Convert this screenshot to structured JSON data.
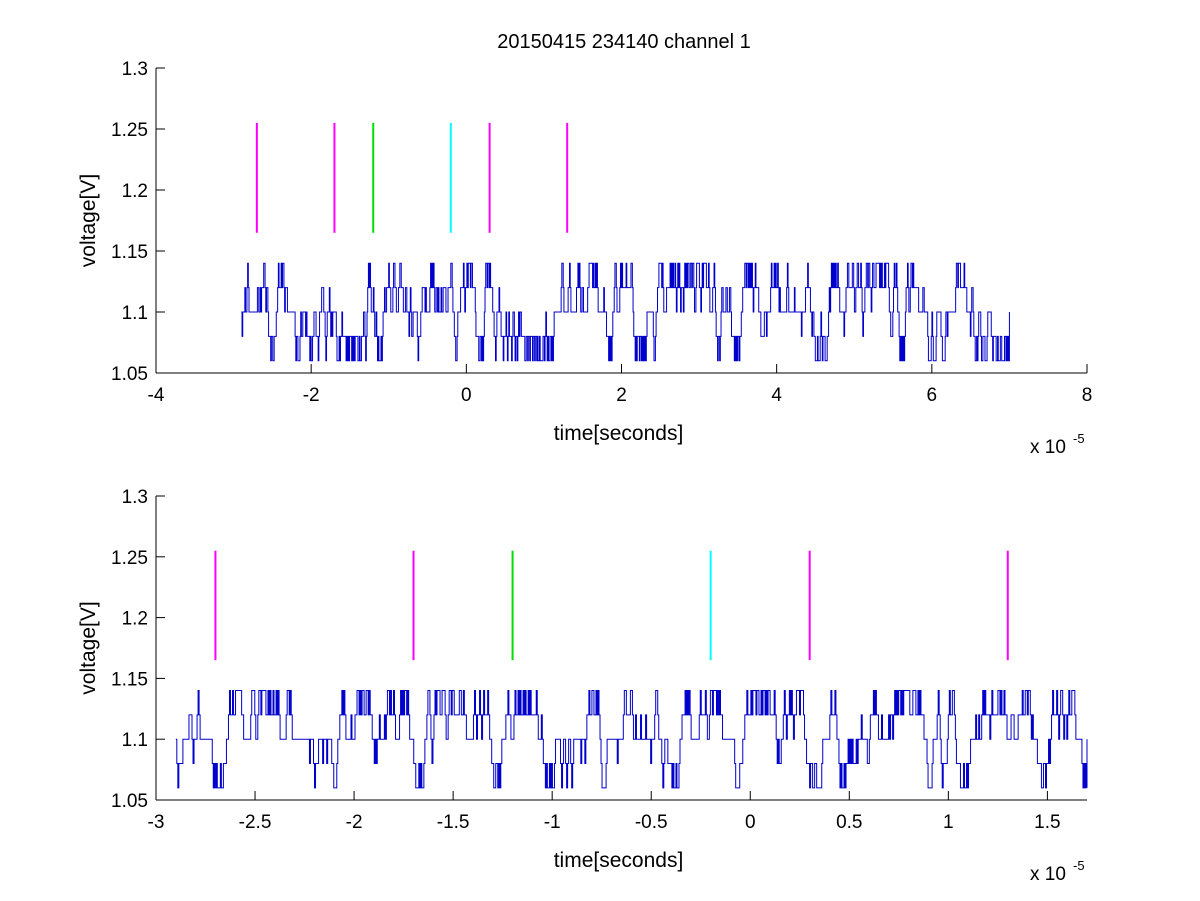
{
  "figure": {
    "title": "20150415 234140 channel 1"
  },
  "colors": {
    "signal": "#0000cc",
    "magenta": "#ff00ff",
    "green": "#00dd00",
    "cyan": "#00ffff",
    "axis": "#000000"
  },
  "chart_data": [
    {
      "type": "line",
      "name": "full-trace",
      "xlabel": "time[seconds]",
      "ylabel": "voltage[V]",
      "x_exponent_label": "x 10",
      "x_exponent": "-5",
      "xlim": [
        -4,
        8
      ],
      "ylim": [
        1.05,
        1.3
      ],
      "xticks": [
        -4,
        -2,
        0,
        2,
        4,
        6,
        8
      ],
      "xtick_labels": [
        "-4",
        "-2",
        "0",
        "2",
        "4",
        "6",
        "8"
      ],
      "yticks": [
        1.05,
        1.1,
        1.15,
        1.2,
        1.25,
        1.3
      ],
      "ytick_labels": [
        "1.05",
        "1.1",
        "1.15",
        "1.2",
        "1.25",
        "1.3"
      ],
      "grid": false,
      "signal": {
        "x_range": [
          -2.9,
          7.0
        ],
        "baseline": 1.1,
        "levels": [
          1.06,
          1.1,
          1.14
        ],
        "step": 0.02
      },
      "markers": [
        {
          "x": -2.7,
          "y0": 1.165,
          "y1": 1.255,
          "color": "magenta"
        },
        {
          "x": -1.7,
          "y0": 1.165,
          "y1": 1.255,
          "color": "magenta"
        },
        {
          "x": -1.2,
          "y0": 1.165,
          "y1": 1.255,
          "color": "green"
        },
        {
          "x": -0.2,
          "y0": 1.165,
          "y1": 1.255,
          "color": "cyan"
        },
        {
          "x": 0.3,
          "y0": 1.165,
          "y1": 1.255,
          "color": "magenta"
        },
        {
          "x": 1.3,
          "y0": 1.165,
          "y1": 1.255,
          "color": "magenta"
        }
      ]
    },
    {
      "type": "line",
      "name": "zoomed-trace",
      "xlabel": "time[seconds]",
      "ylabel": "voltage[V]",
      "x_exponent_label": "x 10",
      "x_exponent": "-5",
      "xlim": [
        -3.0,
        1.7
      ],
      "ylim": [
        1.05,
        1.3
      ],
      "xticks": [
        -3,
        -2.5,
        -2,
        -1.5,
        -1,
        -0.5,
        0,
        0.5,
        1,
        1.5
      ],
      "xtick_labels": [
        "-3",
        "-2.5",
        "-2",
        "-1.5",
        "-1",
        "-0.5",
        "0",
        "0.5",
        "1",
        "1.5"
      ],
      "yticks": [
        1.05,
        1.1,
        1.15,
        1.2,
        1.25,
        1.3
      ],
      "ytick_labels": [
        "1.05",
        "1.1",
        "1.15",
        "1.2",
        "1.25",
        "1.3"
      ],
      "grid": false,
      "signal": {
        "x_range": [
          -2.9,
          1.7
        ],
        "baseline": 1.1,
        "levels": [
          1.06,
          1.1,
          1.14
        ],
        "step": 0.02
      },
      "markers": [
        {
          "x": -2.7,
          "y0": 1.165,
          "y1": 1.255,
          "color": "magenta"
        },
        {
          "x": -1.7,
          "y0": 1.165,
          "y1": 1.255,
          "color": "magenta"
        },
        {
          "x": -1.2,
          "y0": 1.165,
          "y1": 1.255,
          "color": "green"
        },
        {
          "x": -0.2,
          "y0": 1.165,
          "y1": 1.255,
          "color": "cyan"
        },
        {
          "x": 0.3,
          "y0": 1.165,
          "y1": 1.255,
          "color": "magenta"
        },
        {
          "x": 1.3,
          "y0": 1.165,
          "y1": 1.255,
          "color": "magenta"
        }
      ]
    }
  ]
}
